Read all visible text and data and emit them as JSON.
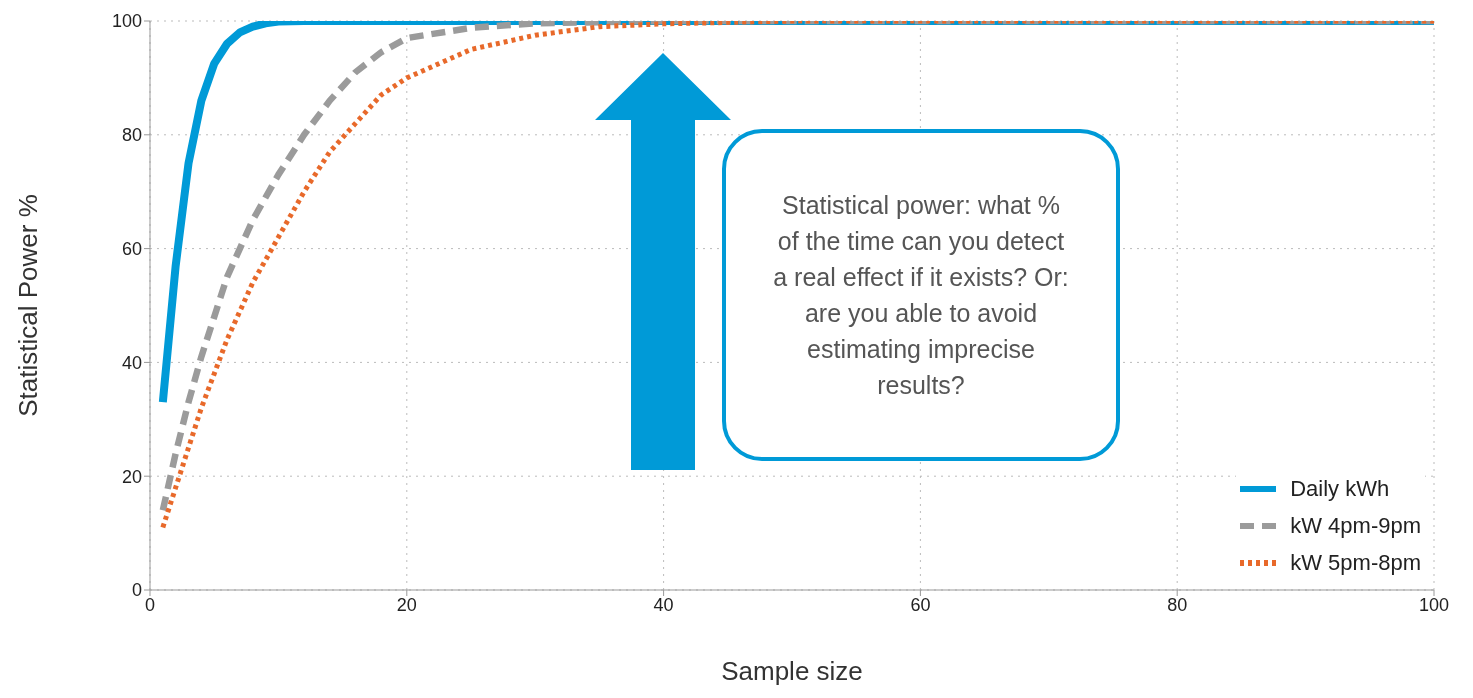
{
  "chart_data": {
    "type": "line",
    "xlabel": "Sample size",
    "ylabel": "Statistical Power %",
    "xlim": [
      0,
      100
    ],
    "ylim": [
      0,
      100
    ],
    "xticks": [
      0,
      20,
      40,
      60,
      80,
      100
    ],
    "yticks": [
      0,
      20,
      40,
      60,
      80,
      100
    ],
    "grid": true,
    "legend": "bottom right",
    "marker": "none",
    "annotations": [
      "Statistical power: what % of the time can you detect a real effect if it exists? Or: are you able to avoid estimating imprecise results?"
    ],
    "series": [
      {
        "name": "Daily kWh",
        "color": "#009ad7",
        "line_style": "solid",
        "x": [
          1,
          2,
          3,
          4,
          5,
          6,
          7,
          8,
          9,
          10,
          12,
          100
        ],
        "values": [
          33,
          57,
          75,
          86,
          92.5,
          96,
          98,
          99,
          99.6,
          99.9,
          100,
          100
        ]
      },
      {
        "name": "kW 4pm-9pm",
        "color": "#9b9b9b",
        "line_style": "dashed",
        "x": [
          1,
          2,
          3,
          4,
          5,
          6,
          7,
          8,
          10,
          12,
          14,
          16,
          18,
          20,
          25,
          30,
          35,
          40,
          100
        ],
        "values": [
          14,
          24,
          33,
          41,
          48,
          55,
          60,
          65,
          73,
          80,
          86,
          91,
          94.5,
          97,
          98.8,
          99.6,
          99.8,
          100,
          100
        ]
      },
      {
        "name": "kW 5pm-8pm",
        "color": "#e8692a",
        "line_style": "dotted",
        "x": [
          1,
          2,
          3,
          4,
          5,
          6,
          7,
          8,
          10,
          12,
          14,
          16,
          18,
          20,
          25,
          30,
          35,
          40,
          50,
          100
        ],
        "values": [
          11,
          18,
          25,
          32,
          38,
          44,
          49,
          54,
          62,
          70,
          77,
          82,
          87,
          90,
          95,
          97.5,
          99,
          99.5,
          100,
          100
        ]
      }
    ]
  }
}
